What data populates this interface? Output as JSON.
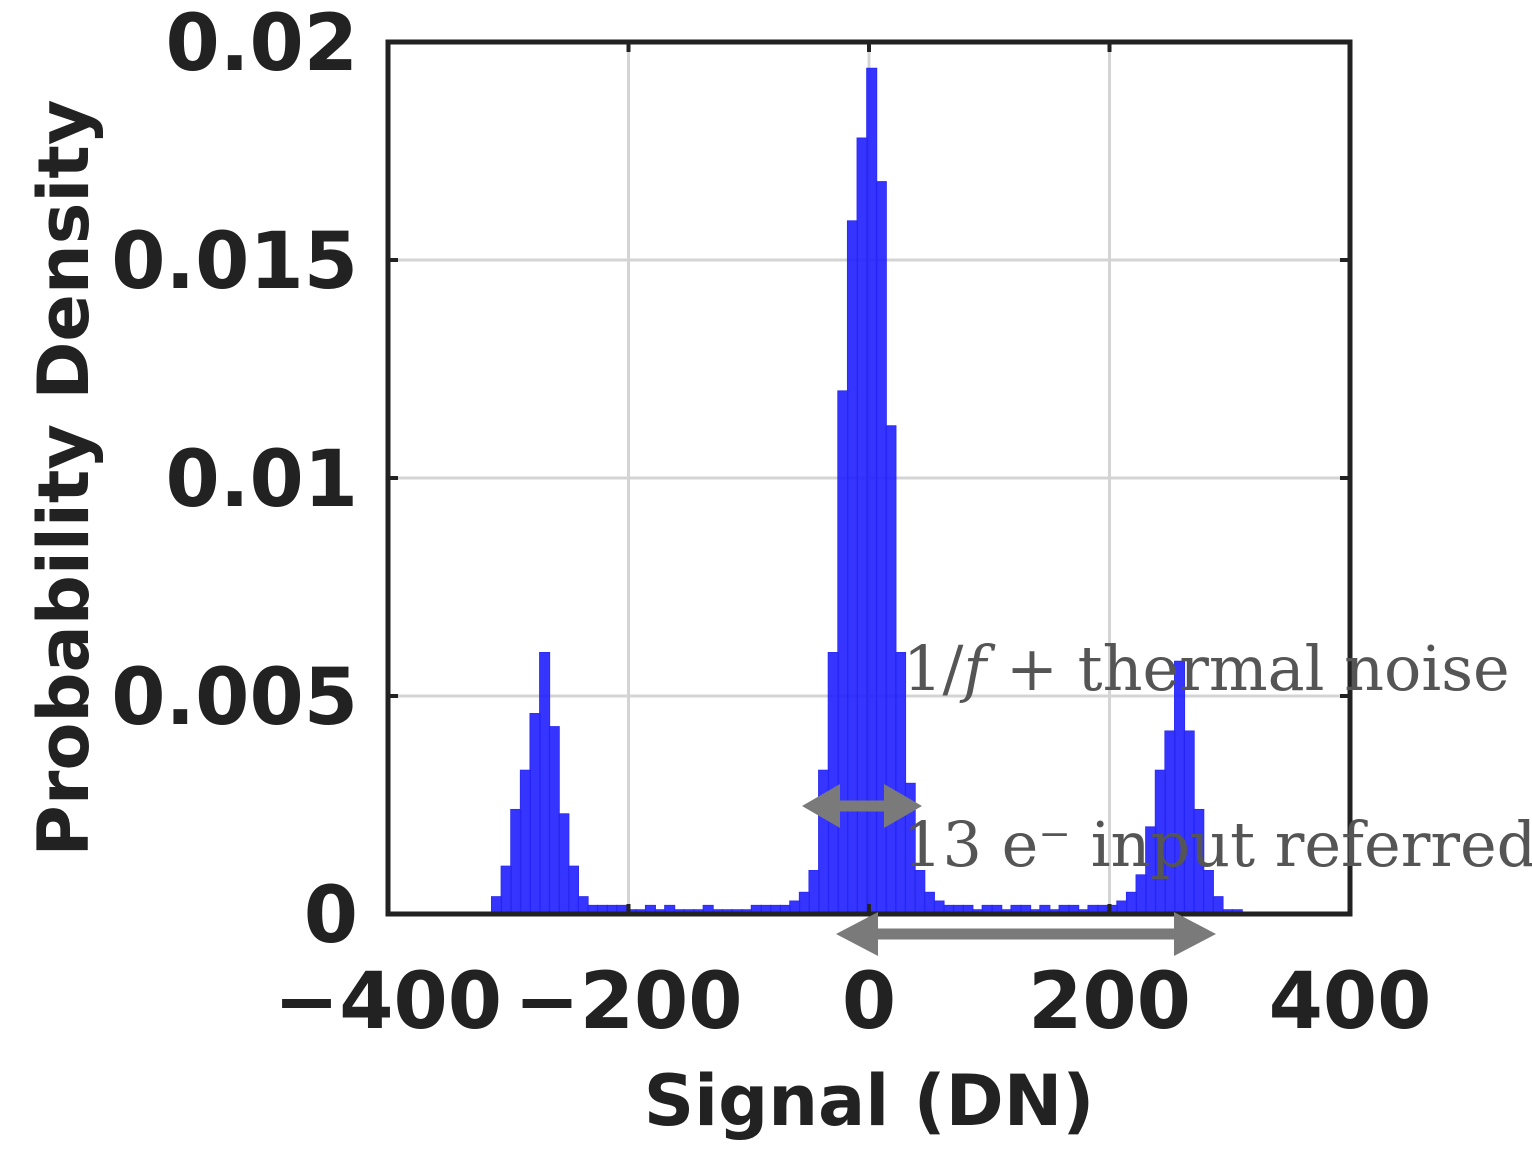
{
  "chart_data": {
    "type": "bar",
    "title": "",
    "xlabel": "Signal (DN)",
    "ylabel": "Probability Density",
    "xlim": [
      -400,
      400
    ],
    "ylim": [
      0,
      0.02
    ],
    "grid": true,
    "x_ticks": [
      -400,
      -200,
      0,
      200,
      400
    ],
    "x_tick_labels": [
      "−400",
      "−200",
      "0",
      "200",
      "400"
    ],
    "y_ticks": [
      0,
      0.005,
      0.01,
      0.015,
      0.02
    ],
    "y_tick_labels": [
      "0",
      "0.005",
      "0.01",
      "0.015",
      "0.02"
    ],
    "bar_color": "#1f1fff",
    "bin_width": 8,
    "series": [
      {
        "x": [
          -310,
          -302,
          -294,
          -286,
          -278,
          -270,
          -262,
          -254,
          -246,
          -238,
          -230,
          -222,
          -214,
          -206,
          -198,
          -190,
          -182,
          -174,
          -166,
          -158,
          -150,
          -142,
          -134,
          -126,
          -118,
          -110,
          -102,
          -94,
          -86,
          -78,
          -70,
          -62,
          -54,
          -46,
          -38,
          -30,
          -22,
          -14,
          -6,
          2,
          10,
          18,
          26,
          34,
          42,
          50,
          58,
          66,
          74,
          82,
          90,
          98,
          106,
          114,
          122,
          130,
          138,
          146,
          154,
          162,
          170,
          178,
          186,
          194,
          202,
          210,
          218,
          226,
          234,
          242,
          250,
          258,
          266,
          274,
          282,
          290,
          298,
          306
        ],
        "values": [
          0.0004,
          0.0011,
          0.0024,
          0.0033,
          0.0046,
          0.006,
          0.0043,
          0.0023,
          0.0011,
          0.0004,
          0.0002,
          0.0002,
          0.0002,
          0.0002,
          0.0001,
          0.0001,
          0.0002,
          0.0001,
          0.0002,
          0.0001,
          0.0001,
          0.0001,
          0.0002,
          0.0001,
          0.0001,
          0.0001,
          0.0001,
          0.0002,
          0.0002,
          0.0002,
          0.0002,
          0.0003,
          0.0005,
          0.001,
          0.0033,
          0.006,
          0.012,
          0.0159,
          0.0178,
          0.0194,
          0.0168,
          0.0112,
          0.006,
          0.003,
          0.001,
          0.0005,
          0.0003,
          0.0002,
          0.0002,
          0.0002,
          0.0001,
          0.0002,
          0.0002,
          0.0001,
          0.0002,
          0.0002,
          0.0001,
          0.0002,
          0.0001,
          0.0002,
          0.0002,
          0.0001,
          0.0002,
          0.0002,
          0.0002,
          0.0003,
          0.0005,
          0.0009,
          0.002,
          0.0033,
          0.0042,
          0.0058,
          0.0042,
          0.0024,
          0.001,
          0.0004,
          0.0001,
          0.0001
        ]
      }
    ],
    "annotations": [
      {
        "text": "1/f + thermal noise",
        "italic_part": "f"
      },
      {
        "text": "13 e⁻ input referred"
      }
    ]
  },
  "annotation_color": "#7a7a7a",
  "annotation_text_color": "#555555"
}
